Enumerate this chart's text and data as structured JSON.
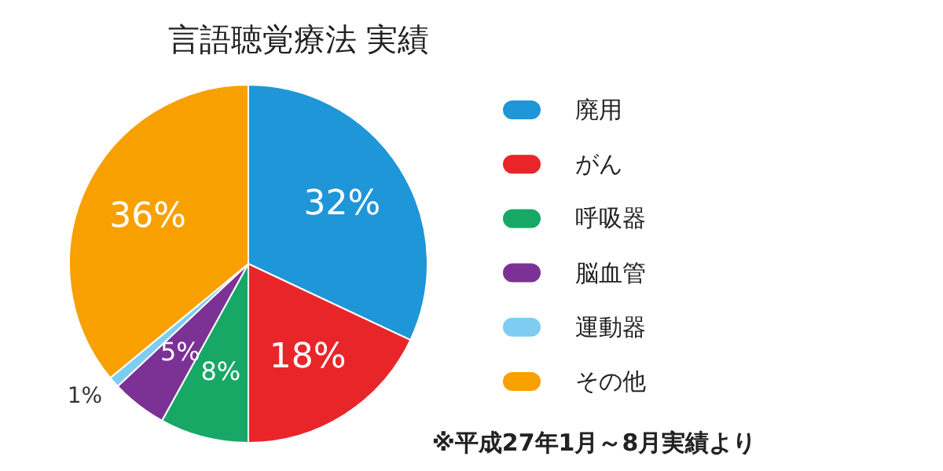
{
  "chart_data": {
    "type": "pie",
    "title": "言語聴覚療法 実績",
    "categories": [
      "廃用",
      "がん",
      "呼吸器",
      "脳血管",
      "運動器",
      "その他"
    ],
    "values": [
      32,
      18,
      8,
      5,
      1,
      36
    ],
    "value_labels": [
      "32%",
      "18%",
      "8%",
      "5%",
      "1%",
      "36%"
    ],
    "colors": [
      "#1e96d8",
      "#e8262a",
      "#17a866",
      "#7b3294",
      "#7dcdf2",
      "#f8a000"
    ],
    "legend": "right",
    "annotations": [
      "※平成27年1月～8月実績より"
    ]
  }
}
